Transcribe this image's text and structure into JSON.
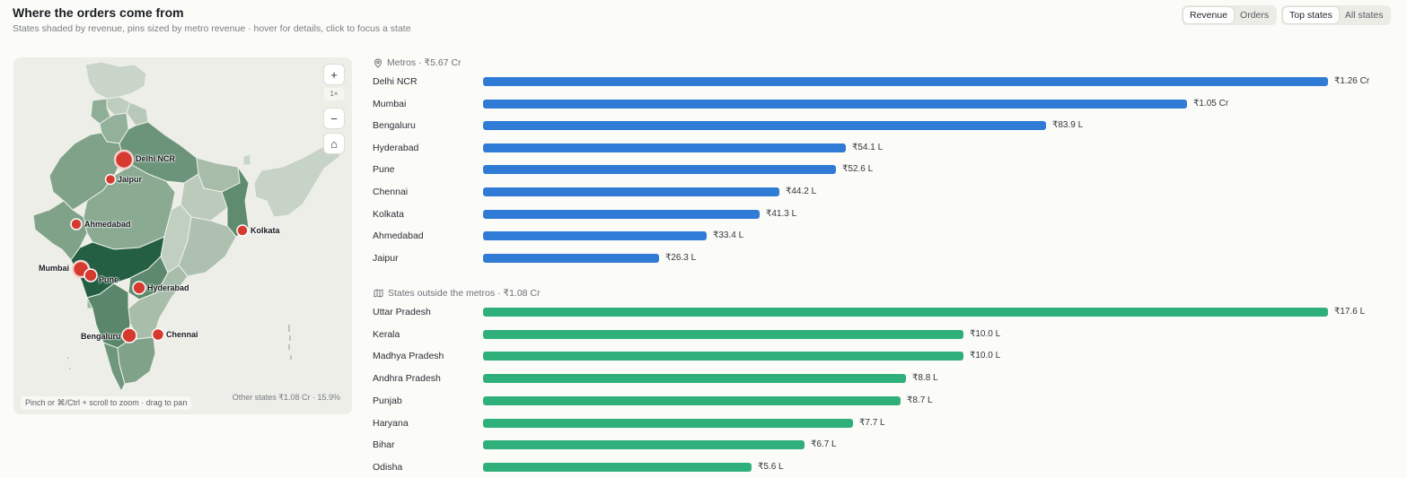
{
  "header": {
    "title": "Where the orders come from",
    "subtitle": "States shaded by revenue, pins sized by metro revenue · hover for details, click to focus a state"
  },
  "controls": {
    "metric": [
      "Revenue",
      "Orders"
    ],
    "metric_active": "Revenue",
    "scope": [
      "Top states",
      "All states"
    ],
    "scope_active": "Top states"
  },
  "map": {
    "zoom_in": "+",
    "zoom_level": "1×",
    "zoom_out": "−",
    "home": "⌂",
    "hint": "Pinch or ⌘/Ctrl + scroll to zoom · drag to pan",
    "other_states": "Other states ₹1.08 Cr · 15.9%",
    "pins": [
      "Delhi NCR",
      "Jaipur",
      "Ahmedabad",
      "Kolkata",
      "Mumbai",
      "Pune",
      "Hyderabad",
      "Bengaluru",
      "Chennai"
    ],
    "colors": {
      "pin": "#d63a2f",
      "shade_dark": "#245f43",
      "shade_light": "#c6d3c6"
    }
  },
  "metros": {
    "heading": "Metros · ₹5.67 Cr",
    "icon": "pin-icon",
    "color": "#2f7bd6",
    "rows": [
      {
        "name": "Delhi NCR",
        "value": 126,
        "label": "₹1.26 Cr"
      },
      {
        "name": "Mumbai",
        "value": 105,
        "label": "₹1.05 Cr"
      },
      {
        "name": "Bengaluru",
        "value": 83.9,
        "label": "₹83.9 L"
      },
      {
        "name": "Hyderabad",
        "value": 54.1,
        "label": "₹54.1 L"
      },
      {
        "name": "Pune",
        "value": 52.6,
        "label": "₹52.6 L"
      },
      {
        "name": "Chennai",
        "value": 44.2,
        "label": "₹44.2 L"
      },
      {
        "name": "Kolkata",
        "value": 41.3,
        "label": "₹41.3 L"
      },
      {
        "name": "Ahmedabad",
        "value": 33.4,
        "label": "₹33.4 L"
      },
      {
        "name": "Jaipur",
        "value": 26.3,
        "label": "₹26.3 L"
      }
    ]
  },
  "states": {
    "heading": "States outside the metros · ₹1.08 Cr",
    "icon": "map-icon",
    "color": "#2fb07a",
    "rows": [
      {
        "name": "Uttar Pradesh",
        "value": 17.6,
        "label": "₹17.6 L"
      },
      {
        "name": "Kerala",
        "value": 10.0,
        "label": "₹10.0 L"
      },
      {
        "name": "Madhya Pradesh",
        "value": 10.0,
        "label": "₹10.0 L"
      },
      {
        "name": "Andhra Pradesh",
        "value": 8.8,
        "label": "₹8.8 L"
      },
      {
        "name": "Punjab",
        "value": 8.7,
        "label": "₹8.7 L"
      },
      {
        "name": "Haryana",
        "value": 7.7,
        "label": "₹7.7 L"
      },
      {
        "name": "Bihar",
        "value": 6.7,
        "label": "₹6.7 L"
      },
      {
        "name": "Odisha",
        "value": 5.6,
        "label": "₹5.6 L"
      }
    ]
  }
}
